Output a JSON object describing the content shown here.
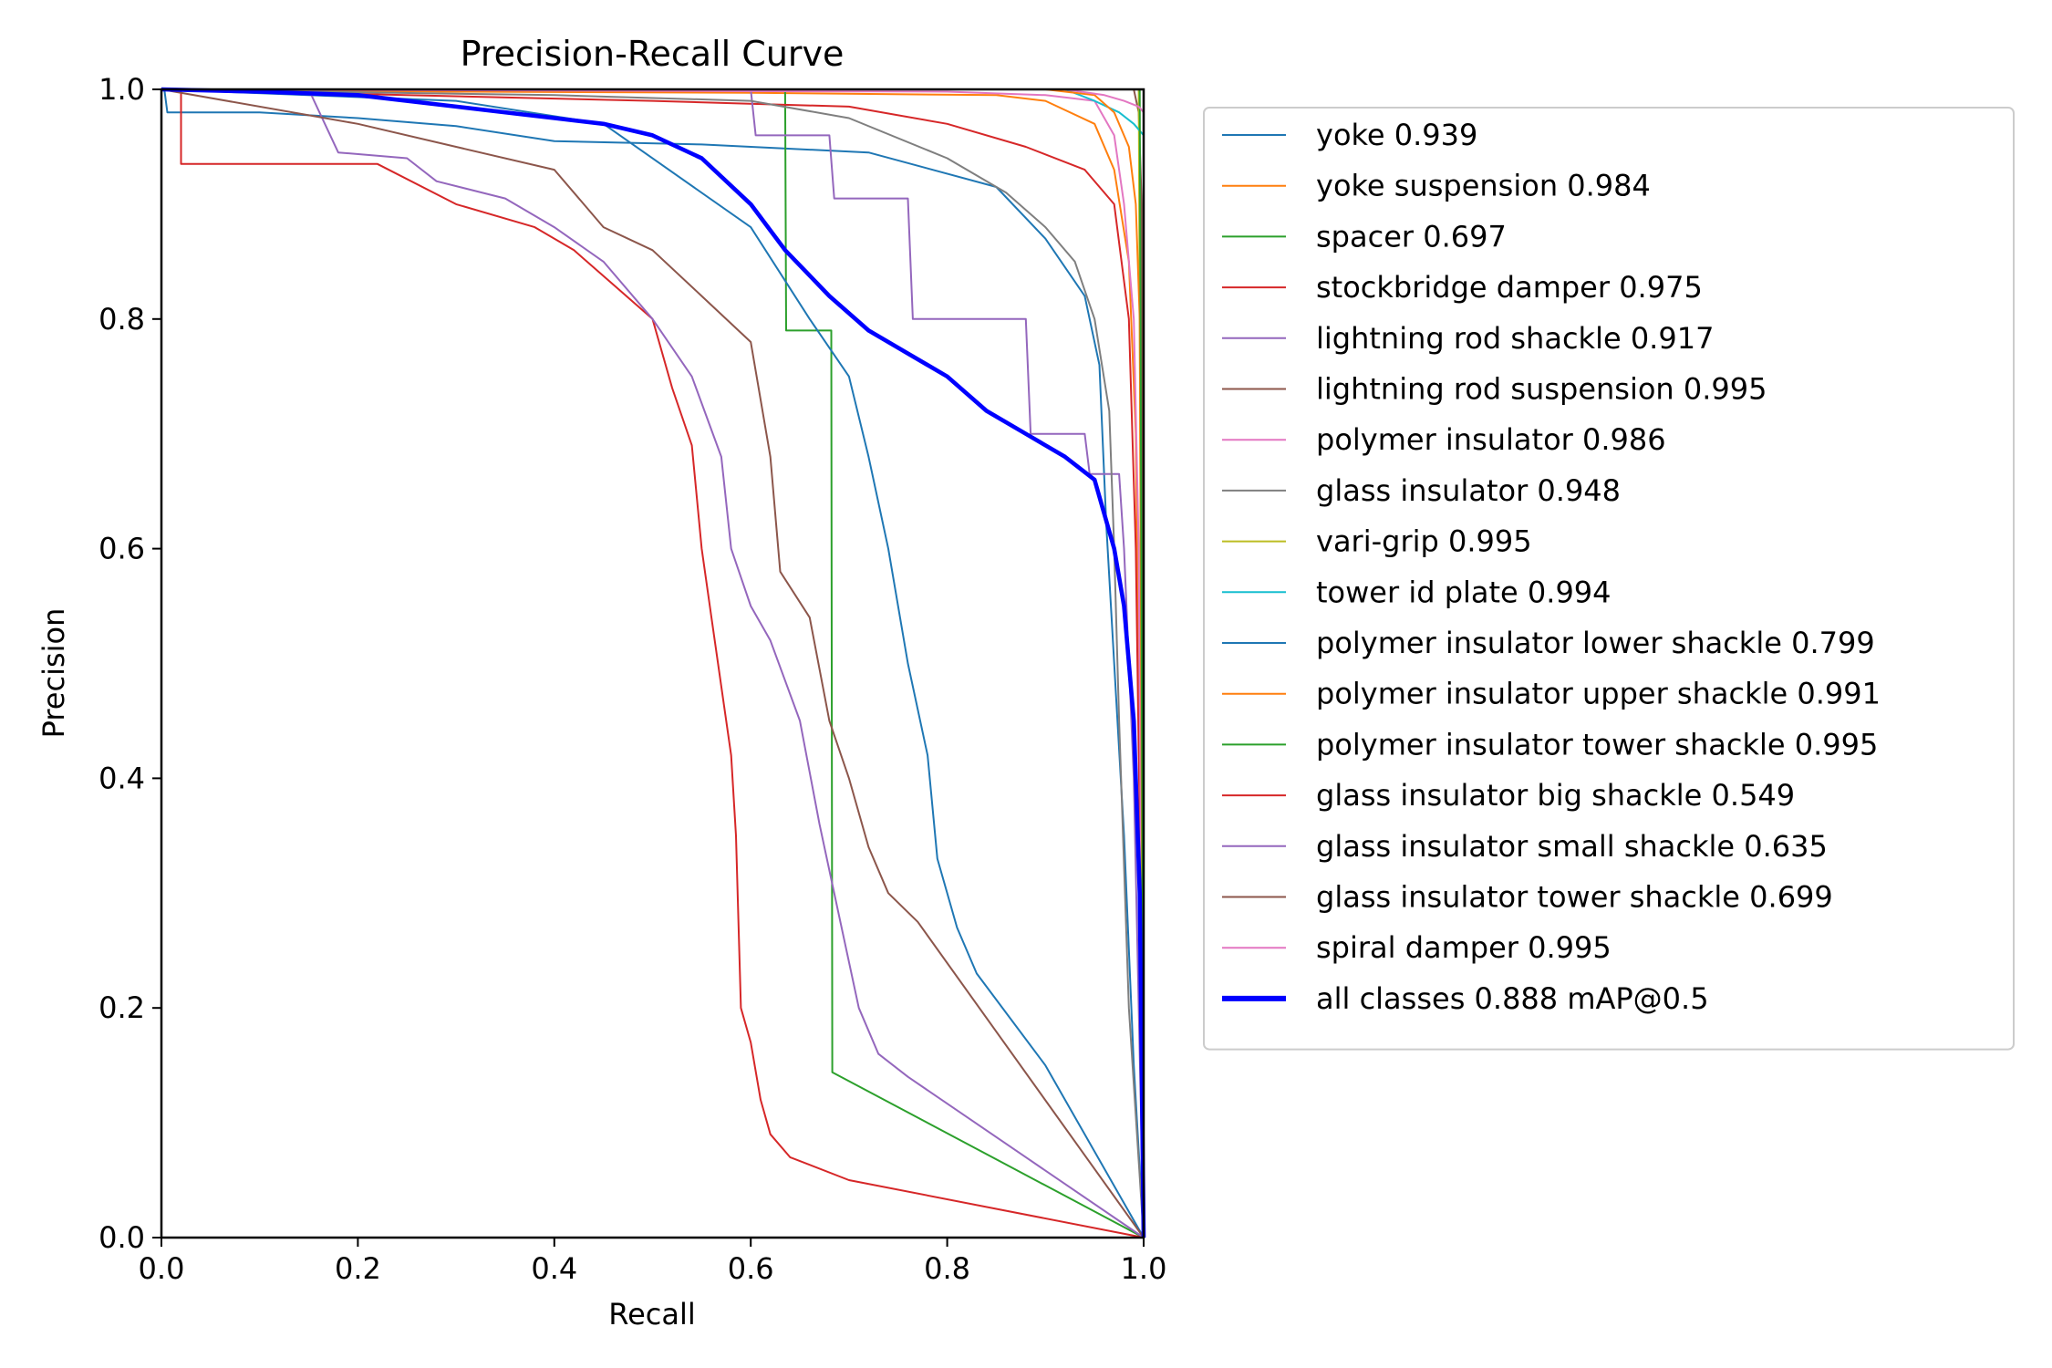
{
  "chart_data": {
    "type": "line",
    "title": "Precision-Recall Curve",
    "xlabel": "Recall",
    "ylabel": "Precision",
    "xlim": [
      0,
      1
    ],
    "ylim": [
      0,
      1
    ],
    "x_ticks": [
      "0.0",
      "0.2",
      "0.4",
      "0.6",
      "0.8",
      "1.0"
    ],
    "y_ticks": [
      "0.0",
      "0.2",
      "0.4",
      "0.6",
      "0.8",
      "1.0"
    ],
    "grid": false,
    "legend_position": "outside-right",
    "series": [
      {
        "name": "yoke 0.939",
        "color": "#1f77b4",
        "points": [
          [
            0,
            1
          ],
          [
            0.003,
            1
          ],
          [
            0.006,
            0.98
          ],
          [
            0.1,
            0.98
          ],
          [
            0.2,
            0.975
          ],
          [
            0.3,
            0.968
          ],
          [
            0.4,
            0.955
          ],
          [
            0.55,
            0.952
          ],
          [
            0.72,
            0.945
          ],
          [
            0.85,
            0.915
          ],
          [
            0.9,
            0.87
          ],
          [
            0.94,
            0.82
          ],
          [
            0.955,
            0.76
          ],
          [
            0.962,
            0.62
          ],
          [
            0.97,
            0.5
          ],
          [
            0.98,
            0.35
          ],
          [
            0.99,
            0.15
          ],
          [
            1.0,
            0
          ]
        ]
      },
      {
        "name": "yoke suspension 0.984",
        "color": "#ff7f0e",
        "points": [
          [
            0,
            1
          ],
          [
            0.3,
            0.998
          ],
          [
            0.6,
            0.997
          ],
          [
            0.85,
            0.995
          ],
          [
            0.9,
            0.99
          ],
          [
            0.95,
            0.97
          ],
          [
            0.97,
            0.93
          ],
          [
            0.985,
            0.85
          ],
          [
            0.992,
            0.7
          ],
          [
            0.996,
            0.4
          ],
          [
            1.0,
            0
          ]
        ]
      },
      {
        "name": "spacer 0.697",
        "color": "#2ca02c",
        "points": [
          [
            0,
            1
          ],
          [
            0.635,
            1
          ],
          [
            0.636,
            0.79
          ],
          [
            0.682,
            0.79
          ],
          [
            0.683,
            0.144
          ],
          [
            1.0,
            0
          ]
        ]
      },
      {
        "name": "stockbridge damper 0.975",
        "color": "#d62728",
        "points": [
          [
            0,
            1
          ],
          [
            0.5,
            0.99
          ],
          [
            0.7,
            0.985
          ],
          [
            0.8,
            0.97
          ],
          [
            0.88,
            0.95
          ],
          [
            0.94,
            0.93
          ],
          [
            0.97,
            0.9
          ],
          [
            0.985,
            0.8
          ],
          [
            0.992,
            0.6
          ],
          [
            0.997,
            0.3
          ],
          [
            1.0,
            0
          ]
        ]
      },
      {
        "name": "lightning rod shackle 0.917",
        "color": "#9467bd",
        "points": [
          [
            0,
            1
          ],
          [
            0.6,
            1
          ],
          [
            0.605,
            0.96
          ],
          [
            0.68,
            0.96
          ],
          [
            0.685,
            0.905
          ],
          [
            0.76,
            0.905
          ],
          [
            0.765,
            0.8
          ],
          [
            0.88,
            0.8
          ],
          [
            0.885,
            0.7
          ],
          [
            0.94,
            0.7
          ],
          [
            0.945,
            0.665
          ],
          [
            0.975,
            0.665
          ],
          [
            0.98,
            0.6
          ],
          [
            0.99,
            0.4
          ],
          [
            1.0,
            0
          ]
        ]
      },
      {
        "name": "lightning rod suspension 0.995",
        "color": "#8c564b",
        "points": [
          [
            0,
            1
          ],
          [
            0.99,
            1
          ],
          [
            0.995,
            0.98
          ],
          [
            0.998,
            0.9
          ],
          [
            1.0,
            0
          ]
        ]
      },
      {
        "name": "polymer insulator 0.986",
        "color": "#e377c2",
        "points": [
          [
            0,
            1
          ],
          [
            0.8,
            0.998
          ],
          [
            0.9,
            0.995
          ],
          [
            0.95,
            0.99
          ],
          [
            0.97,
            0.96
          ],
          [
            0.98,
            0.9
          ],
          [
            0.99,
            0.8
          ],
          [
            0.995,
            0.6
          ],
          [
            1.0,
            0
          ]
        ]
      },
      {
        "name": "glass insulator 0.948",
        "color": "#7f7f7f",
        "points": [
          [
            0,
            1
          ],
          [
            0.4,
            0.995
          ],
          [
            0.6,
            0.99
          ],
          [
            0.7,
            0.975
          ],
          [
            0.8,
            0.94
          ],
          [
            0.86,
            0.91
          ],
          [
            0.9,
            0.88
          ],
          [
            0.93,
            0.85
          ],
          [
            0.95,
            0.8
          ],
          [
            0.965,
            0.72
          ],
          [
            0.97,
            0.6
          ],
          [
            0.975,
            0.45
          ],
          [
            0.985,
            0.2
          ],
          [
            1.0,
            0
          ]
        ]
      },
      {
        "name": "vari-grip 0.995",
        "color": "#bcbd22",
        "points": [
          [
            0,
            1
          ],
          [
            0.995,
            1
          ],
          [
            1.0,
            0
          ]
        ]
      },
      {
        "name": "tower id plate 0.994",
        "color": "#17becf",
        "points": [
          [
            0,
            1
          ],
          [
            0.92,
            1
          ],
          [
            0.95,
            0.99
          ],
          [
            0.975,
            0.98
          ],
          [
            0.99,
            0.97
          ],
          [
            1.0,
            0.96
          ],
          [
            1.0,
            0
          ]
        ]
      },
      {
        "name": "polymer insulator lower shackle 0.799",
        "color": "#1f77b4",
        "points": [
          [
            0,
            1
          ],
          [
            0.3,
            0.99
          ],
          [
            0.45,
            0.97
          ],
          [
            0.6,
            0.88
          ],
          [
            0.66,
            0.8
          ],
          [
            0.7,
            0.75
          ],
          [
            0.72,
            0.68
          ],
          [
            0.74,
            0.6
          ],
          [
            0.76,
            0.5
          ],
          [
            0.78,
            0.42
          ],
          [
            0.79,
            0.33
          ],
          [
            0.81,
            0.27
          ],
          [
            0.83,
            0.23
          ],
          [
            0.9,
            0.15
          ],
          [
            1.0,
            0
          ]
        ]
      },
      {
        "name": "polymer insulator upper shackle 0.991",
        "color": "#ff7f0e",
        "points": [
          [
            0,
            1
          ],
          [
            0.9,
            1
          ],
          [
            0.95,
            0.995
          ],
          [
            0.97,
            0.98
          ],
          [
            0.985,
            0.95
          ],
          [
            0.992,
            0.9
          ],
          [
            0.996,
            0.8
          ],
          [
            1.0,
            0
          ]
        ]
      },
      {
        "name": "polymer insulator tower shackle 0.995",
        "color": "#2ca02c",
        "points": [
          [
            0,
            1
          ],
          [
            0.996,
            1
          ],
          [
            1.0,
            0
          ]
        ]
      },
      {
        "name": "glass insulator big shackle 0.549",
        "color": "#d62728",
        "points": [
          [
            0,
            1
          ],
          [
            0.02,
            1
          ],
          [
            0.02,
            0.935
          ],
          [
            0.22,
            0.935
          ],
          [
            0.3,
            0.9
          ],
          [
            0.38,
            0.88
          ],
          [
            0.42,
            0.86
          ],
          [
            0.46,
            0.83
          ],
          [
            0.5,
            0.8
          ],
          [
            0.52,
            0.74
          ],
          [
            0.54,
            0.69
          ],
          [
            0.55,
            0.6
          ],
          [
            0.56,
            0.54
          ],
          [
            0.57,
            0.48
          ],
          [
            0.58,
            0.42
          ],
          [
            0.585,
            0.35
          ],
          [
            0.59,
            0.2
          ],
          [
            0.6,
            0.17
          ],
          [
            0.61,
            0.12
          ],
          [
            0.62,
            0.09
          ],
          [
            0.64,
            0.07
          ],
          [
            0.7,
            0.05
          ],
          [
            1.0,
            0
          ]
        ]
      },
      {
        "name": "glass insulator small shackle 0.635",
        "color": "#9467bd",
        "points": [
          [
            0,
            1
          ],
          [
            0.15,
            1
          ],
          [
            0.18,
            0.945
          ],
          [
            0.25,
            0.94
          ],
          [
            0.28,
            0.92
          ],
          [
            0.35,
            0.905
          ],
          [
            0.4,
            0.88
          ],
          [
            0.45,
            0.85
          ],
          [
            0.5,
            0.8
          ],
          [
            0.54,
            0.75
          ],
          [
            0.57,
            0.68
          ],
          [
            0.58,
            0.6
          ],
          [
            0.6,
            0.55
          ],
          [
            0.62,
            0.52
          ],
          [
            0.65,
            0.45
          ],
          [
            0.67,
            0.36
          ],
          [
            0.69,
            0.28
          ],
          [
            0.71,
            0.2
          ],
          [
            0.73,
            0.16
          ],
          [
            0.76,
            0.14
          ],
          [
            1.0,
            0
          ]
        ]
      },
      {
        "name": "glass insulator tower shackle 0.699",
        "color": "#8c564b",
        "points": [
          [
            0,
            1
          ],
          [
            0.2,
            0.97
          ],
          [
            0.3,
            0.95
          ],
          [
            0.4,
            0.93
          ],
          [
            0.45,
            0.88
          ],
          [
            0.5,
            0.86
          ],
          [
            0.55,
            0.82
          ],
          [
            0.6,
            0.78
          ],
          [
            0.62,
            0.68
          ],
          [
            0.63,
            0.58
          ],
          [
            0.66,
            0.54
          ],
          [
            0.68,
            0.45
          ],
          [
            0.7,
            0.4
          ],
          [
            0.72,
            0.34
          ],
          [
            0.74,
            0.3
          ],
          [
            0.77,
            0.275
          ],
          [
            1.0,
            0
          ]
        ]
      },
      {
        "name": "spiral damper 0.995",
        "color": "#e377c2",
        "points": [
          [
            0,
            1
          ],
          [
            0.92,
            1
          ],
          [
            0.96,
            0.995
          ],
          [
            0.98,
            0.99
          ],
          [
            0.995,
            0.985
          ],
          [
            1.0,
            0.98
          ],
          [
            1.0,
            0
          ]
        ]
      },
      {
        "name": "all classes 0.888 mAP@0.5",
        "color": "#0000ff",
        "width": 4.6,
        "points": [
          [
            0,
            1
          ],
          [
            0.1,
            0.998
          ],
          [
            0.2,
            0.995
          ],
          [
            0.3,
            0.985
          ],
          [
            0.4,
            0.975
          ],
          [
            0.45,
            0.97
          ],
          [
            0.5,
            0.96
          ],
          [
            0.55,
            0.94
          ],
          [
            0.6,
            0.9
          ],
          [
            0.635,
            0.86
          ],
          [
            0.68,
            0.82
          ],
          [
            0.72,
            0.79
          ],
          [
            0.76,
            0.77
          ],
          [
            0.8,
            0.75
          ],
          [
            0.84,
            0.72
          ],
          [
            0.88,
            0.7
          ],
          [
            0.92,
            0.68
          ],
          [
            0.95,
            0.66
          ],
          [
            0.97,
            0.6
          ],
          [
            0.98,
            0.55
          ],
          [
            0.99,
            0.45
          ],
          [
            0.996,
            0.3
          ],
          [
            1.0,
            0
          ]
        ]
      }
    ]
  }
}
